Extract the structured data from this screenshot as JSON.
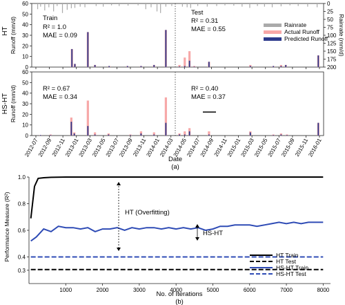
{
  "chart_data": [
    {
      "type": "bar",
      "panel_row": "HT",
      "ylabel": "Runoff (mm/d)",
      "secondary_ylabel": "Rainrate (mm/d)",
      "ylim": [
        0,
        60
      ],
      "yticks": [
        0,
        10,
        20,
        30,
        40,
        50,
        60
      ],
      "secondary_yticks": [
        0,
        25,
        50,
        75,
        100,
        125,
        150,
        175,
        200
      ],
      "secondary_ylim_inverted": [
        200,
        0
      ],
      "legend": [
        "Rainrate",
        "Actual Runoff",
        "Predicted Runoff"
      ],
      "legend_position": "top-right",
      "split_label_left": "Train",
      "split_label_right": "Test",
      "metrics_left": [
        "R² = 1.0",
        "MAE = 0.09"
      ],
      "metrics_right": [
        "R² = 0.31",
        "MAE = 0.55"
      ],
      "runoff_events": [
        {
          "t": 6.1,
          "actual": 17,
          "predicted": 17
        },
        {
          "t": 6.6,
          "actual": 3,
          "predicted": 3
        },
        {
          "t": 8.8,
          "actual": 33,
          "predicted": 33
        },
        {
          "t": 10.0,
          "actual": 2,
          "predicted": 2
        },
        {
          "t": 12.4,
          "actual": 1,
          "predicted": 1
        },
        {
          "t": 15.5,
          "actual": 1,
          "predicted": 1
        },
        {
          "t": 17.8,
          "actual": 1,
          "predicted": 1
        },
        {
          "t": 20.0,
          "actual": 2,
          "predicted": 2
        },
        {
          "t": 22.0,
          "actual": 35,
          "predicted": 35
        },
        {
          "t": 24.3,
          "actual": 2,
          "predicted": 0.5
        },
        {
          "t": 25.2,
          "actual": 9,
          "predicted": 1
        },
        {
          "t": 26.0,
          "actual": 15,
          "predicted": 6
        },
        {
          "t": 26.8,
          "actual": 1,
          "predicted": 0.5
        },
        {
          "t": 29.3,
          "actual": 5,
          "predicted": 5
        },
        {
          "t": 36.3,
          "actual": 2,
          "predicted": 1
        },
        {
          "t": 40.2,
          "actual": 1,
          "predicted": 1
        },
        {
          "t": 41.5,
          "actual": 2,
          "predicted": 1
        },
        {
          "t": 42.3,
          "actual": 2,
          "predicted": 2
        },
        {
          "t": 47.8,
          "actual": 11,
          "predicted": 11
        }
      ],
      "rainrate_events": [
        {
          "t": 0.3,
          "value": 18
        },
        {
          "t": 0.8,
          "value": 10
        },
        {
          "t": 1.5,
          "value": 22
        },
        {
          "t": 2.2,
          "value": 12
        },
        {
          "t": 3.0,
          "value": 25
        },
        {
          "t": 3.6,
          "value": 8
        },
        {
          "t": 4.5,
          "value": 30
        },
        {
          "t": 5.3,
          "value": 20
        },
        {
          "t": 6.0,
          "value": 15
        },
        {
          "t": 6.6,
          "value": 14
        },
        {
          "t": 7.5,
          "value": 10
        },
        {
          "t": 8.3,
          "value": 12
        },
        {
          "t": 10.2,
          "value": 8
        },
        {
          "t": 11.4,
          "value": 10
        },
        {
          "t": 12.8,
          "value": 6
        },
        {
          "t": 14.1,
          "value": 8
        },
        {
          "t": 15.6,
          "value": 7
        },
        {
          "t": 17.3,
          "value": 6
        },
        {
          "t": 18.6,
          "value": 18
        },
        {
          "t": 19.5,
          "value": 12
        },
        {
          "t": 20.5,
          "value": 25
        },
        {
          "t": 21.1,
          "value": 30
        },
        {
          "t": 22.0,
          "value": 10
        },
        {
          "t": 23.0,
          "value": 8
        },
        {
          "t": 24.8,
          "value": 10
        },
        {
          "t": 25.6,
          "value": 12
        },
        {
          "t": 26.2,
          "value": 14
        },
        {
          "t": 27.4,
          "value": 8
        },
        {
          "t": 29.0,
          "value": 10
        },
        {
          "t": 30.6,
          "value": 8
        },
        {
          "t": 32.0,
          "value": 6
        },
        {
          "t": 33.5,
          "value": 7
        },
        {
          "t": 34.9,
          "value": 10
        },
        {
          "t": 36.2,
          "value": 14
        },
        {
          "t": 37.5,
          "value": 8
        },
        {
          "t": 38.7,
          "value": 10
        },
        {
          "t": 40.0,
          "value": 12
        },
        {
          "t": 41.5,
          "value": 9
        },
        {
          "t": 43.0,
          "value": 6
        },
        {
          "t": 44.4,
          "value": 8
        },
        {
          "t": 46.0,
          "value": 10
        },
        {
          "t": 47.6,
          "value": 12
        }
      ]
    },
    {
      "type": "bar",
      "panel_row": "HS-HT",
      "ylabel": "Runoff (mm/d)",
      "ylim": [
        0,
        60
      ],
      "yticks": [
        0,
        10,
        20,
        30,
        40,
        50,
        60
      ],
      "metrics_left": [
        "R² = 0.67",
        "MAE = 0.34"
      ],
      "metrics_right": [
        "R² = 0.40",
        "MAE = 0.37"
      ],
      "runoff_events": [
        {
          "t": 0.8,
          "actual": 0.5,
          "predicted": 0.5
        },
        {
          "t": 2.5,
          "actual": 1,
          "predicted": 0.5
        },
        {
          "t": 6.0,
          "actual": 17,
          "predicted": 13
        },
        {
          "t": 6.5,
          "actual": 3,
          "predicted": 2
        },
        {
          "t": 8.8,
          "actual": 33,
          "predicted": 9
        },
        {
          "t": 10.0,
          "actual": 3,
          "predicted": 1
        },
        {
          "t": 12.3,
          "actual": 2,
          "predicted": 1
        },
        {
          "t": 16.0,
          "actual": 1,
          "predicted": 0.5
        },
        {
          "t": 17.8,
          "actual": 4,
          "predicted": 2
        },
        {
          "t": 20.0,
          "actual": 3,
          "predicted": 1
        },
        {
          "t": 22.0,
          "actual": 36,
          "predicted": 12
        },
        {
          "t": 24.3,
          "actual": 2,
          "predicted": 1
        },
        {
          "t": 25.2,
          "actual": 4,
          "predicted": 1
        },
        {
          "t": 26.0,
          "actual": 7,
          "predicted": 4
        },
        {
          "t": 29.3,
          "actual": 4,
          "predicted": 1
        },
        {
          "t": 36.3,
          "actual": 4,
          "predicted": 3
        },
        {
          "t": 40.2,
          "actual": 1,
          "predicted": 0.5
        },
        {
          "t": 41.5,
          "actual": 2,
          "predicted": 1
        },
        {
          "t": 42.5,
          "actual": 1,
          "predicted": 0.5
        },
        {
          "t": 47.8,
          "actual": 12,
          "predicted": 12
        }
      ]
    },
    {
      "type": "line",
      "panel_row": "iterations",
      "xlabel": "No. of Iterations",
      "ylabel": "Performance Measure (R²)",
      "xlim": [
        0,
        8200
      ],
      "ylim": [
        0.2,
        1.0
      ],
      "xticks": [
        1000,
        2000,
        3000,
        4000,
        5000,
        6000,
        7000,
        8000
      ],
      "yticks": [
        0.3,
        0.4,
        0.6,
        0.8,
        1.0
      ],
      "legend_position": "bottom-right",
      "annotation_gap_1": "HT (Overfitting)",
      "annotation_gap_2": "HS-HT",
      "series": [
        {
          "name": "HT Train",
          "style": "solid",
          "color": "#000000",
          "x": [
            50,
            150,
            250,
            400,
            600,
            1000,
            2000,
            3000,
            4000,
            5000,
            6000,
            7000,
            8000
          ],
          "y": [
            0.69,
            0.93,
            0.99,
            0.995,
            0.998,
            1.0,
            1.0,
            1.0,
            1.0,
            1.0,
            1.0,
            1.0,
            1.0
          ]
        },
        {
          "name": "HT Test",
          "style": "dashed",
          "color": "#000000",
          "x": [
            50,
            8000
          ],
          "y": [
            0.305,
            0.305
          ]
        },
        {
          "name": "HS-HT Train",
          "style": "solid",
          "color": "#2e4bb5",
          "x": [
            50,
            200,
            400,
            600,
            800,
            1000,
            1200,
            1400,
            1600,
            1800,
            2000,
            2200,
            2400,
            2600,
            2800,
            3000,
            3200,
            3400,
            3600,
            3800,
            4000,
            4200,
            4400,
            4600,
            4800,
            5000,
            5200,
            5400,
            5600,
            5800,
            6000,
            6200,
            6400,
            6600,
            6800,
            7000,
            7200,
            7400,
            7600,
            7800,
            8000
          ],
          "y": [
            0.52,
            0.55,
            0.61,
            0.59,
            0.63,
            0.62,
            0.62,
            0.61,
            0.62,
            0.59,
            0.61,
            0.61,
            0.62,
            0.6,
            0.62,
            0.61,
            0.62,
            0.62,
            0.61,
            0.62,
            0.61,
            0.62,
            0.61,
            0.62,
            0.6,
            0.61,
            0.63,
            0.63,
            0.64,
            0.64,
            0.64,
            0.63,
            0.64,
            0.65,
            0.66,
            0.65,
            0.66,
            0.65,
            0.66,
            0.66,
            0.66
          ]
        },
        {
          "name": "HS-HT Test",
          "style": "dashed",
          "color": "#2e4bb5",
          "x": [
            50,
            8000
          ],
          "y": [
            0.4,
            0.4
          ]
        }
      ]
    }
  ],
  "dates": [
    "2012-07",
    "2012-09",
    "2012-11",
    "2013-01",
    "2013-03",
    "2013-05",
    "2013-07",
    "2013-09",
    "2013-11",
    "2014-01",
    "2014-03",
    "2014-05",
    "2014-07",
    "2014-09",
    "2014-11",
    "2015-01",
    "2015-03",
    "2015-05",
    "2015-07",
    "2015-09",
    "2015-11",
    "2016-01"
  ],
  "date_axis_label": "Date",
  "caption_a": "(a)",
  "caption_b": "(b)",
  "colors": {
    "rainrate": "#aaaaaa",
    "actual": "#f7a8a8",
    "predicted": "#2c3a8c",
    "ht": "#000000",
    "hsht": "#2e4bb5"
  }
}
